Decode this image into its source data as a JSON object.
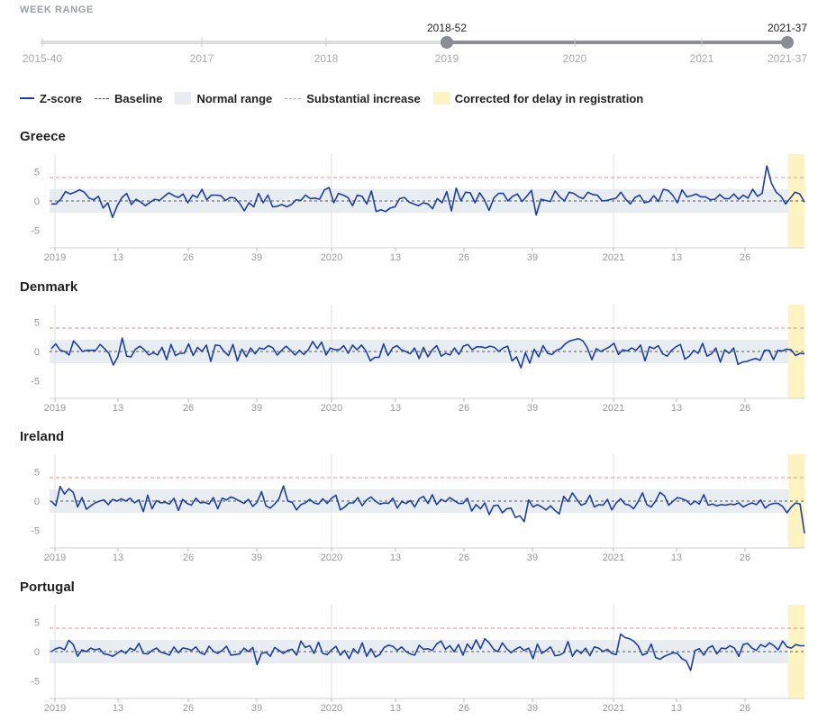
{
  "week_range": {
    "title": "WEEK RANGE",
    "start_label": "2015-40",
    "end_label": "2021-37",
    "selected_start": "2018-52",
    "selected_end": "2021-37",
    "year_ticks": [
      "2017",
      "2018",
      "2019",
      "2020",
      "2021"
    ]
  },
  "legend": {
    "zscore": "Z-score",
    "baseline": "Baseline",
    "normal_range": "Normal range",
    "substantial": "Substantial increase",
    "corrected": "Corrected for delay in registration"
  },
  "colors": {
    "zscore": "#1f3fa0",
    "baseline": "#555555",
    "normal_range": "#e8edf2",
    "substantial": "#f08c8c",
    "corrected": "#fdf4c1",
    "slider_track": "#dddddd",
    "slider_selected": "#8a8d95"
  },
  "chart_data": [
    {
      "type": "line",
      "title": "Greece",
      "x_ticks": [
        "2019",
        "13",
        "26",
        "39",
        "2020",
        "13",
        "26",
        "39",
        "2021",
        "13",
        "26"
      ],
      "y_ticks": [
        5,
        0,
        -5
      ],
      "ylim": [
        -8,
        8
      ],
      "baseline": 0,
      "normal_range": [
        -2,
        2
      ],
      "substantial_increase": 4,
      "values": [
        -0.5,
        -0.5,
        0.3,
        1.6,
        1.2,
        1.5,
        1.9,
        1.5,
        0.5,
        0.2,
        0.8,
        -1.2,
        -0.3,
        -2.8,
        -0.8,
        0.6,
        1.3,
        -0.6,
        0.3,
        -0.2,
        -0.8,
        -0.2,
        0.3,
        0.1,
        0.8,
        1.4,
        0.9,
        0.6,
        1.2,
        -0.3,
        1.0,
        0.6,
        2.0,
        0.2,
        1.0,
        1.0,
        0.9,
        0.1,
        0.6,
        0.5,
        -0.4,
        -1.7,
        -0.3,
        -1.0,
        1.3,
        -0.3,
        1.0,
        -1.0,
        -0.9,
        -0.6,
        -1.0,
        -0.6,
        0.2,
        0.1,
        1.0,
        0.4,
        0.5,
        0.3,
        1.9,
        2.3,
        -0.3,
        1.3,
        1.0,
        0.6,
        -0.8,
        1.0,
        0.8,
        -0.5,
        1.7,
        -1.8,
        -1.5,
        -1.8,
        -1.2,
        -1.0,
        0.4,
        0.6,
        -0.2,
        -0.5,
        -0.8,
        -0.3,
        -0.5,
        -1.3,
        0.4,
        -0.3,
        1.6,
        -1.7,
        2.2,
        0.0,
        1.5,
        1.4,
        -0.3,
        1.4,
        0.2,
        -1.6,
        0.5,
        1.3,
        1.3,
        0.0,
        0.8,
        1.2,
        -0.1,
        0.8,
        1.8,
        -2.4,
        0.3,
        0.1,
        -0.1,
        1.7,
        0.7,
        0.0,
        1.5,
        1.3,
        0.7,
        0.4,
        1.5,
        1.1,
        1.0,
        0.0,
        0.1,
        0.3,
        0.5,
        1.5,
        0.3,
        -0.5,
        0.6,
        1.0,
        -0.3,
        -0.1,
        0.9,
        -0.1,
        2.0,
        1.8,
        1.0,
        -0.3,
        1.9,
        0.7,
        0.9,
        1.2,
        0.7,
        0.7,
        0.2,
        0.3,
        1.1,
        0.4,
        0.4,
        1.2,
        0.3,
        1.0,
        0.5,
        2.0,
        0.8,
        1.3,
        6.0,
        3.0,
        1.5,
        0.8,
        -0.5,
        0.5,
        1.5,
        1.2,
        -0.2
      ]
    },
    {
      "type": "line",
      "title": "Denmark",
      "x_ticks": [
        "2019",
        "13",
        "26",
        "39",
        "2020",
        "13",
        "26",
        "39",
        "2021",
        "13",
        "26"
      ],
      "y_ticks": [
        5,
        0,
        -5
      ],
      "ylim": [
        -8,
        8
      ],
      "baseline": 0,
      "normal_range": [
        -2,
        2
      ],
      "substantial_increase": 4,
      "values": [
        0.5,
        1.3,
        0.2,
        0.0,
        -0.6,
        1.8,
        1.0,
        0.0,
        0.2,
        0.2,
        0.2,
        1.2,
        0.5,
        -0.3,
        -2.3,
        -0.9,
        2.3,
        -0.8,
        -0.9,
        0.4,
        0.9,
        0.3,
        -0.6,
        -0.2,
        -0.6,
        0.7,
        -1.4,
        1.2,
        -0.7,
        -0.3,
        -0.3,
        1.3,
        -0.7,
        0.7,
        0.0,
        1.1,
        -1.7,
        1.1,
        1.0,
        0.0,
        -0.7,
        1.2,
        -1.6,
        0.4,
        -0.9,
        0.6,
        -0.4,
        0.6,
        0.4,
        1.0,
        0.6,
        -0.6,
        0.2,
        0.9,
        0.2,
        -0.6,
        0.2,
        -0.5,
        0.3,
        1.7,
        0.5,
        1.6,
        -0.6,
        0.6,
        0.3,
        0.3,
        1.0,
        -0.3,
        1.1,
        0.3,
        1.1,
        0.1,
        -1.6,
        -1.0,
        -1.0,
        1.3,
        -0.7,
        0.6,
        1.0,
        0.3,
        0.0,
        -0.4,
        0.6,
        -1.2,
        0.7,
        -0.9,
        0.3,
        1.0,
        -0.8,
        -0.3,
        -0.6,
        0.6,
        -0.5,
        0.9,
        1.2,
        0.3,
        0.8,
        0.8,
        0.6,
        0.9,
        0.7,
        0.0,
        0.6,
        0.9,
        -1.6,
        -0.9,
        -2.8,
        -0.2,
        -2.0,
        0.4,
        -0.9,
        1.0,
        -0.3,
        -0.5,
        0.2,
        0.5,
        1.3,
        1.8,
        2.0,
        2.2,
        1.8,
        0.6,
        -1.4,
        0.5,
        0.0,
        0.4,
        0.8,
        1.4,
        -0.5,
        0.3,
        0.1,
        0.6,
        0.2,
        1.1,
        -1.6,
        0.8,
        0.5,
        1.0,
        -0.4,
        -0.8,
        0.2,
        0.8,
        1.2,
        -1.3,
        -0.8,
        0.2,
        -0.3,
        1.4,
        -0.8,
        -0.4,
        0.6,
        -1.8,
        0.3,
        -0.3,
        0.6,
        -2.2,
        -1.8,
        -1.7,
        -1.4,
        -1.2,
        -1.5,
        0.2,
        0.2,
        -1.4,
        0.2,
        0.1,
        0.4,
        0.3,
        -0.7,
        -0.3,
        -0.4
      ]
    },
    {
      "type": "line",
      "title": "Ireland",
      "x_ticks": [
        "2019",
        "13",
        "26",
        "39",
        "2020",
        "13",
        "26",
        "39",
        "2021",
        "13",
        "26"
      ],
      "y_ticks": [
        5,
        0,
        -5
      ],
      "ylim": [
        -8,
        8
      ],
      "baseline": 0,
      "normal_range": [
        -2,
        2
      ],
      "substantial_increase": 4,
      "values": [
        0.0,
        -0.8,
        2.5,
        1.2,
        2.1,
        1.5,
        -1.0,
        0.6,
        -1.4,
        -0.8,
        -0.3,
        0.0,
        0.2,
        -0.6,
        0.3,
        0.0,
        0.4,
        0.0,
        0.5,
        -0.3,
        0.2,
        -1.8,
        1.0,
        -1.3,
        0.1,
        -0.3,
        -0.2,
        -0.5,
        0.5,
        -1.6,
        0.3,
        -0.4,
        -0.7,
        0.5,
        -0.3,
        -0.2,
        -0.5,
        0.6,
        -1.3,
        0.5,
        0.2,
        0.7,
        0.4,
        0.0,
        -0.4,
        0.3,
        -0.9,
        -0.2,
        1.6,
        -0.8,
        -1.2,
        -0.5,
        0.4,
        2.6,
        0.0,
        -0.2,
        -1.5,
        -0.6,
        -0.3,
        0.3,
        -0.3,
        -0.5,
        0.4,
        -0.4,
        0.5,
        1.0,
        -1.5,
        -1.0,
        -0.3,
        -0.3,
        0.6,
        -0.8,
        0.2,
        0.7,
        0.0,
        -0.5,
        -0.3,
        -0.4,
        0.5,
        -1.2,
        -0.1,
        -0.4,
        0.1,
        -1.0,
        0.4,
        0.8,
        -0.4,
        1.1,
        -0.6,
        0.3,
        -0.1,
        0.6,
        0.1,
        -0.4,
        -0.4,
        0.5,
        -1.7,
        -0.6,
        -1.3,
        -0.3,
        -2.3,
        -0.8,
        -0.7,
        -2.0,
        -1.3,
        -1.2,
        -2.8,
        -2.5,
        -3.5,
        0.2,
        -1.0,
        -0.6,
        -1.0,
        -1.5,
        -0.8,
        -1.6,
        -2.2,
        0.8,
        -0.1,
        1.4,
        0.3,
        -0.7,
        -0.4,
        1.0,
        -1.0,
        -0.6,
        -0.7,
        0.3,
        -1.5,
        -0.3,
        0.4,
        -0.5,
        -0.7,
        -1.3,
        -0.1,
        1.4,
        -0.6,
        -1.0,
        0.0,
        1.5,
        0.9,
        -0.7,
        0.0,
        0.6,
        0.4,
        0.1,
        -0.6,
        0.0,
        -0.5,
        1.1,
        -0.7,
        -0.5,
        -0.8,
        -0.6,
        -0.7,
        -0.5,
        -0.6,
        -0.3,
        -1.0,
        -0.6,
        -0.3,
        -0.6,
        0.2,
        -1.2,
        -0.6,
        -0.4,
        -0.4,
        -0.9,
        -2.0,
        -1.0,
        -0.3,
        -0.5,
        -5.5
      ]
    },
    {
      "type": "line",
      "title": "Portugal",
      "x_ticks": [
        "2019",
        "13",
        "26",
        "39",
        "2020",
        "13",
        "26",
        "39",
        "2021",
        "13",
        "26"
      ],
      "y_ticks": [
        5,
        0,
        -5
      ],
      "ylim": [
        -8,
        8
      ],
      "baseline": 0,
      "normal_range": [
        -2,
        2
      ],
      "substantial_increase": 4,
      "values": [
        0.0,
        0.5,
        0.7,
        0.3,
        1.9,
        1.2,
        -0.8,
        0.3,
        0.0,
        0.6,
        0.3,
        0.5,
        -0.4,
        -0.5,
        -0.8,
        -0.3,
        0.2,
        -0.3,
        0.6,
        0.2,
        1.4,
        -0.3,
        -0.4,
        0.2,
        0.6,
        -0.1,
        -0.3,
        -0.6,
        0.8,
        -0.2,
        0.6,
        0.5,
        0.2,
        0.8,
        -0.2,
        -0.5,
        0.9,
        0.1,
        -0.3,
        0.2,
        0.9,
        -0.6,
        -0.5,
        -0.4,
        0.6,
        0.0,
        0.7,
        -2.2,
        -0.3,
        -0.1,
        -0.8,
        0.7,
        0.2,
        -0.3,
        0.2,
        0.4,
        -0.6,
        1.8,
        0.7,
        1.0,
        -0.3,
        1.6,
        -0.3,
        -0.5,
        0.3,
        0.9,
        -0.6,
        0.2,
        -1.2,
        0.5,
        -0.3,
        1.5,
        -0.8,
        0.5,
        -0.9,
        -0.5,
        0.7,
        1.1,
        0.9,
        0.2,
        0.8,
        0.0,
        -0.4,
        -0.6,
        1.1,
        0.4,
        0.5,
        0.2,
        1.3,
        1.8,
        0.4,
        1.0,
        0.0,
        1.2,
        -0.6,
        1.3,
        0.4,
        2.0,
        0.5,
        2.2,
        1.5,
        0.4,
        0.0,
        1.5,
        0.5,
        -0.2,
        0.4,
        0.8,
        0.2,
        0.6,
        -1.2,
        1.3,
        -0.3,
        0.2,
        0.8,
        -0.7,
        -0.6,
        -0.2,
        1.7,
        -0.8,
        0.3,
        -0.3,
        0.6,
        -0.7,
        0.8,
        0.6,
        0.0,
        0.4,
        -0.3,
        -0.5,
        3.0,
        2.4,
        2.2,
        1.8,
        1.0,
        -0.6,
        -0.3,
        1.3,
        -1.0,
        -1.3,
        -0.8,
        -0.5,
        -0.2,
        -0.3,
        -1.2,
        -1.6,
        -3.2,
        0.2,
        0.5,
        -0.6,
        0.6,
        1.0,
        -0.4,
        0.6,
        0.5,
        1.0,
        0.6,
        -0.8,
        1.2,
        1.4,
        0.6,
        0.2,
        1.2,
        0.8,
        1.5,
        1.0,
        0.3,
        1.8,
        0.8,
        0.6,
        1.2,
        1.0,
        1.0
      ]
    }
  ]
}
